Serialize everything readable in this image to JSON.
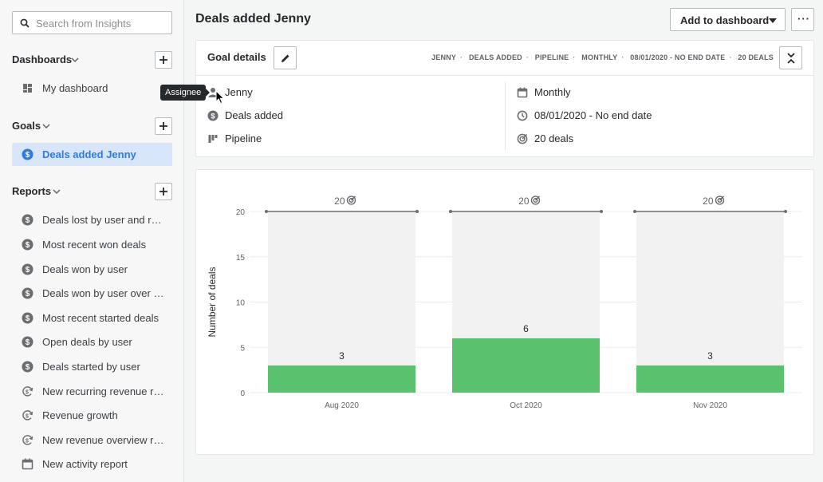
{
  "sidebar": {
    "search_placeholder": "Search from Insights",
    "dashboards": {
      "title": "Dashboards",
      "items": [
        {
          "label": "My dashboard",
          "icon": "dashboard-icon"
        }
      ]
    },
    "goals": {
      "title": "Goals",
      "items": [
        {
          "label": "Deals added Jenny",
          "icon": "dollar-circle-icon",
          "active": true
        }
      ]
    },
    "reports": {
      "title": "Reports",
      "items": [
        {
          "label": "Deals lost by user and rea…",
          "icon": "dollar-circle-icon"
        },
        {
          "label": "Most recent won deals",
          "icon": "dollar-circle-icon"
        },
        {
          "label": "Deals won by user",
          "icon": "dollar-circle-icon"
        },
        {
          "label": "Deals won by user over ti…",
          "icon": "dollar-circle-icon"
        },
        {
          "label": "Most recent started deals",
          "icon": "dollar-circle-icon"
        },
        {
          "label": "Open deals by user",
          "icon": "dollar-circle-icon"
        },
        {
          "label": "Deals started by user",
          "icon": "dollar-circle-icon"
        },
        {
          "label": "New recurring revenue re…",
          "icon": "recurring-revenue-icon"
        },
        {
          "label": "Revenue growth",
          "icon": "recurring-revenue-icon"
        },
        {
          "label": "New revenue overview re…",
          "icon": "recurring-revenue-icon"
        },
        {
          "label": "New activity report",
          "icon": "calendar-icon"
        }
      ]
    }
  },
  "header": {
    "title": "Deals added Jenny",
    "add_to_dashboard": "Add to dashboard",
    "more": "···"
  },
  "goal_details": {
    "title": "Goal details",
    "crumbs": [
      "JENNY",
      "DEALS ADDED",
      "PIPELINE",
      "MONTHLY",
      "08/01/2020 - NO END DATE",
      "20 DEALS"
    ],
    "left": [
      {
        "label": "Jenny",
        "icon": "person-icon"
      },
      {
        "label": "Deals added",
        "icon": "dollar-circle-icon"
      },
      {
        "label": "Pipeline",
        "icon": "pipeline-icon"
      }
    ],
    "right": [
      {
        "label": "Monthly",
        "icon": "calendar-icon"
      },
      {
        "label": "08/01/2020 - No end date",
        "icon": "clock-icon"
      },
      {
        "label": "20 deals",
        "icon": "target-icon"
      }
    ],
    "tooltip": "Assignee"
  },
  "colors": {
    "accent": "#317ae2",
    "bar": "#5ac26e",
    "bar_bg": "#f2f2f2",
    "goal_line": "#6a6e72"
  },
  "chart_data": {
    "type": "bar",
    "ylabel": "Number of deals",
    "ylim": [
      0,
      20
    ],
    "yticks": [
      0,
      5,
      10,
      15,
      20
    ],
    "categories": [
      "Aug 2020",
      "Oct 2020",
      "Nov 2020"
    ],
    "values": [
      3,
      6,
      3
    ],
    "goal": 20,
    "goal_labels": [
      "20",
      "20",
      "20"
    ],
    "grid": true
  }
}
